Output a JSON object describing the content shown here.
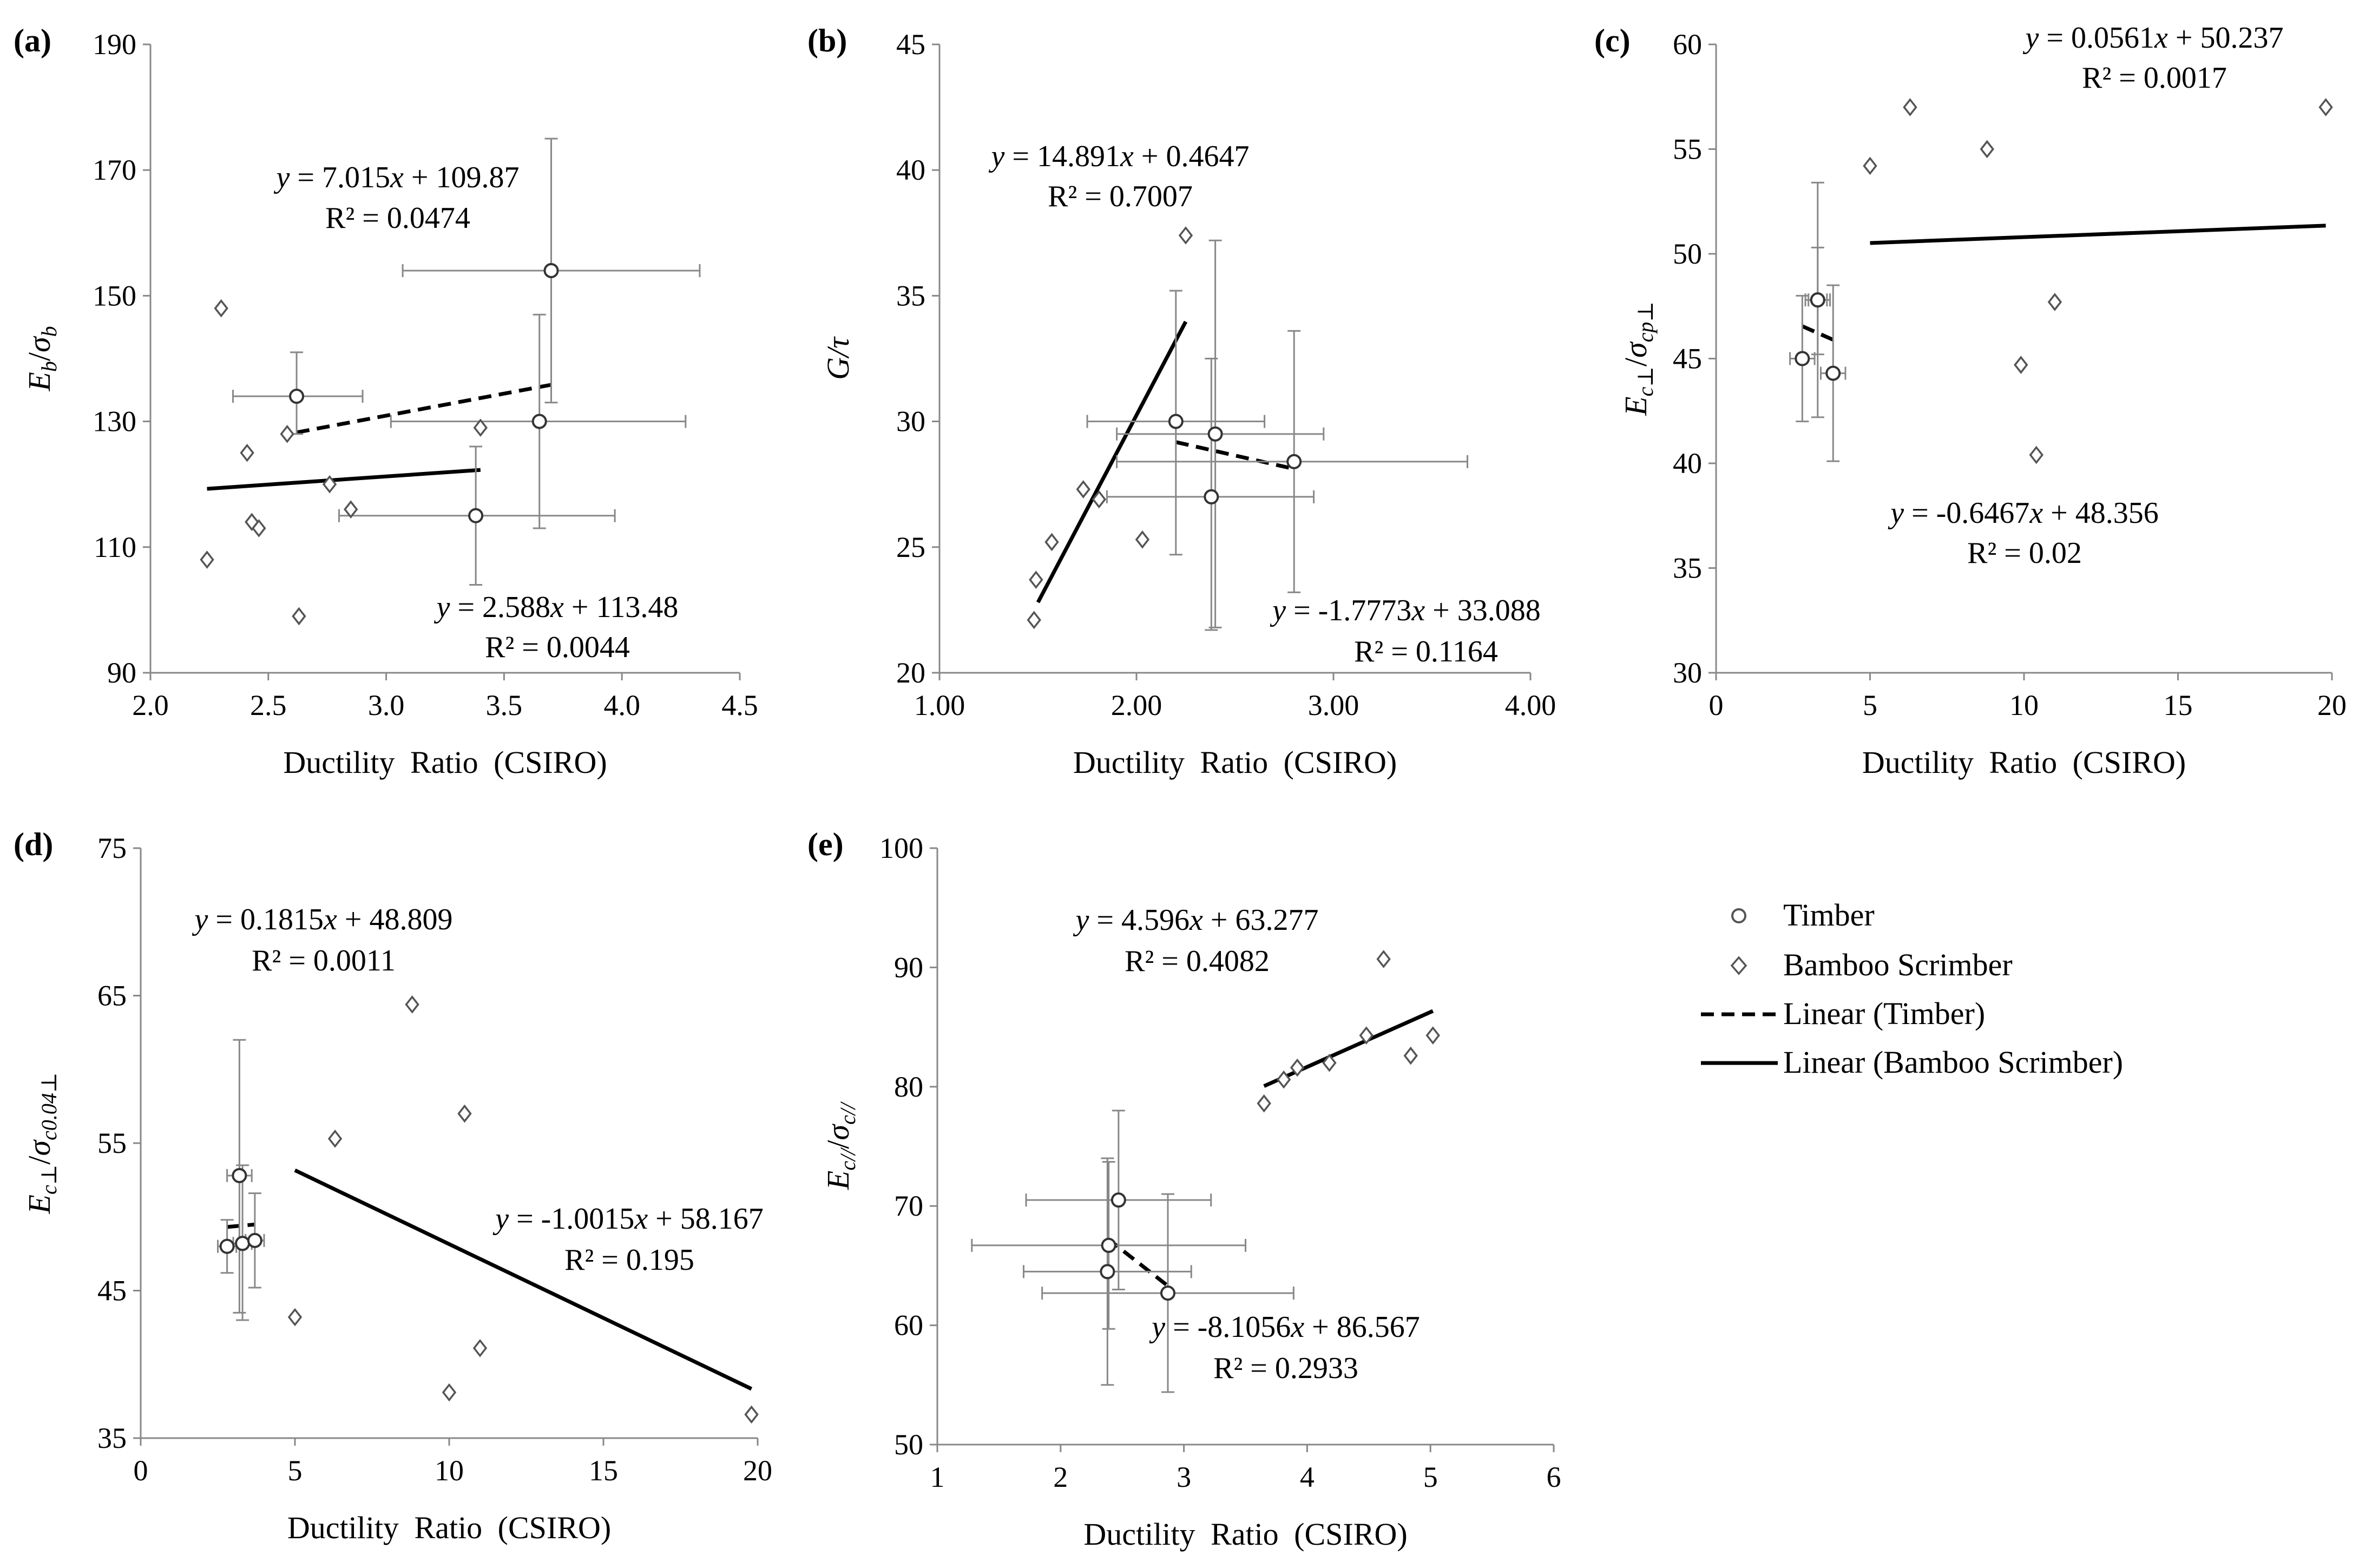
{
  "legend": [
    {
      "label": "Timber",
      "kind": "circle"
    },
    {
      "label": "Bamboo Scrimber",
      "kind": "diamond"
    },
    {
      "label": "Linear (Timber)",
      "kind": "dash"
    },
    {
      "label": "Linear (Bamboo Scrimber)",
      "kind": "solid"
    }
  ],
  "chart_data": [
    {
      "panel": "(a)",
      "type": "scatter",
      "xlabel": "Ductility Ratio (CSIRO)",
      "ylabel_main": "E",
      "ylabel_sub": "b",
      "ylabel_main2": "σ",
      "ylabel_sub2": "b",
      "xlim": [
        2.0,
        4.5
      ],
      "ylim": [
        90,
        190
      ],
      "xticks": [
        2.0,
        2.5,
        3.0,
        3.5,
        4.0,
        4.5
      ],
      "xtick_labels": [
        "2.0",
        "2.5",
        "3.0",
        "3.5",
        "4.0",
        "4.5"
      ],
      "yticks": [
        90,
        110,
        130,
        150,
        170,
        190
      ],
      "ytick_labels": [
        "90",
        "110",
        "130",
        "150",
        "170",
        "190"
      ],
      "timber": [
        {
          "x": 2.62,
          "y": 134,
          "xerr": [
            2.35,
            2.9
          ],
          "yerr": [
            128,
            141
          ]
        },
        {
          "x": 3.65,
          "y": 130,
          "xerr": [
            3.02,
            4.27
          ],
          "yerr": [
            113,
            147
          ]
        },
        {
          "x": 3.7,
          "y": 154,
          "xerr": [
            3.07,
            4.33
          ],
          "yerr": [
            133,
            175
          ]
        },
        {
          "x": 3.38,
          "y": 115,
          "xerr": [
            2.8,
            3.97
          ],
          "yerr": [
            104,
            126
          ]
        }
      ],
      "bamboo": [
        {
          "x": 2.24,
          "y": 108
        },
        {
          "x": 2.3,
          "y": 148
        },
        {
          "x": 2.41,
          "y": 125
        },
        {
          "x": 2.43,
          "y": 114
        },
        {
          "x": 2.46,
          "y": 113
        },
        {
          "x": 2.58,
          "y": 128
        },
        {
          "x": 2.63,
          "y": 99
        },
        {
          "x": 2.76,
          "y": 120
        },
        {
          "x": 2.85,
          "y": 116
        },
        {
          "x": 3.4,
          "y": 129
        }
      ],
      "fit_timber": {
        "slope": 7.015,
        "intercept": 109.87,
        "x_range": [
          2.62,
          3.7
        ]
      },
      "fit_bamboo": {
        "slope": 2.588,
        "intercept": 113.48,
        "x_range": [
          2.24,
          3.4
        ]
      },
      "eq_timber": {
        "text": "y = 7.015x + 109.87",
        "r2": "R² = 0.0474"
      },
      "eq_bamboo": {
        "text": "y = 2.588x + 113.48",
        "r2": "R² = 0.0044"
      }
    },
    {
      "panel": "(b)",
      "type": "scatter",
      "xlabel": "Ductility Ratio (CSIRO)",
      "ylabel_main": "G/τ",
      "xlim": [
        1.0,
        4.0
      ],
      "ylim": [
        20,
        45
      ],
      "xticks": [
        1.0,
        2.0,
        3.0,
        4.0
      ],
      "xtick_labels": [
        "1.00",
        "2.00",
        "3.00",
        "4.00"
      ],
      "yticks": [
        20,
        25,
        30,
        35,
        40,
        45
      ],
      "ytick_labels": [
        "20",
        "25",
        "30",
        "35",
        "40",
        "45"
      ],
      "timber": [
        {
          "x": 2.2,
          "y": 30.0,
          "xerr": [
            1.75,
            2.65
          ],
          "yerr": [
            24.7,
            35.2
          ]
        },
        {
          "x": 2.4,
          "y": 29.5,
          "xerr": [
            1.9,
            2.95
          ],
          "yerr": [
            21.8,
            37.2
          ]
        },
        {
          "x": 2.38,
          "y": 27.0,
          "xerr": [
            1.85,
            2.9
          ],
          "yerr": [
            21.7,
            32.5
          ]
        },
        {
          "x": 2.8,
          "y": 28.4,
          "xerr": [
            1.9,
            3.68
          ],
          "yerr": [
            23.2,
            33.6
          ]
        }
      ],
      "bamboo": [
        {
          "x": 1.48,
          "y": 22.1
        },
        {
          "x": 1.49,
          "y": 23.7
        },
        {
          "x": 1.57,
          "y": 25.2
        },
        {
          "x": 1.73,
          "y": 27.3
        },
        {
          "x": 1.81,
          "y": 26.9
        },
        {
          "x": 2.03,
          "y": 25.3
        },
        {
          "x": 2.25,
          "y": 37.4
        }
      ],
      "fit_timber": {
        "slope": -1.7773,
        "intercept": 33.088,
        "x_range": [
          2.2,
          2.8
        ]
      },
      "fit_bamboo": {
        "slope": 14.891,
        "intercept": 0.4647,
        "x_range": [
          1.5,
          2.25
        ]
      },
      "eq_timber": {
        "text": "y = -1.7773x + 33.088",
        "r2": "R² = 0.1164"
      },
      "eq_bamboo": {
        "text": "y = 14.891x + 0.4647",
        "r2": "R² = 0.7007"
      }
    },
    {
      "panel": "(c)",
      "type": "scatter",
      "xlabel": "Ductility Ratio (CSIRO)",
      "ylabel_main": "E",
      "ylabel_sub": "c⊥",
      "ylabel_main2": "σ",
      "ylabel_sub2": "cp⊥",
      "xlim": [
        0,
        20
      ],
      "ylim": [
        30,
        60
      ],
      "xticks": [
        0,
        5,
        10,
        15,
        20
      ],
      "xtick_labels": [
        "0",
        "5",
        "10",
        "15",
        "20"
      ],
      "yticks": [
        30,
        35,
        40,
        45,
        50,
        55,
        60
      ],
      "ytick_labels": [
        "30",
        "35",
        "40",
        "45",
        "50",
        "55",
        "60"
      ],
      "timber": [
        {
          "x": 2.8,
          "y": 45.0,
          "xerr": [
            2.4,
            3.2
          ],
          "yerr": [
            42.0,
            48.0
          ]
        },
        {
          "x": 3.3,
          "y": 47.8,
          "xerr": [
            2.9,
            3.7
          ],
          "yerr": [
            45.2,
            50.3
          ]
        },
        {
          "x": 3.3,
          "y": 47.8,
          "xerr": [
            3.0,
            3.6
          ],
          "yerr": [
            42.2,
            53.4
          ]
        },
        {
          "x": 3.8,
          "y": 44.3,
          "xerr": [
            3.4,
            4.2
          ],
          "yerr": [
            40.1,
            48.5
          ]
        }
      ],
      "bamboo": [
        {
          "x": 5.0,
          "y": 54.2
        },
        {
          "x": 6.3,
          "y": 57.0
        },
        {
          "x": 8.8,
          "y": 55.0
        },
        {
          "x": 9.9,
          "y": 44.7
        },
        {
          "x": 10.4,
          "y": 40.4
        },
        {
          "x": 11.0,
          "y": 47.7
        },
        {
          "x": 19.8,
          "y": 57.0
        }
      ],
      "fit_timber": {
        "slope": -0.6467,
        "intercept": 48.356,
        "x_range": [
          2.8,
          3.8
        ]
      },
      "fit_bamboo": {
        "slope": 0.0561,
        "intercept": 50.237,
        "x_range": [
          5.0,
          19.8
        ]
      },
      "eq_timber": {
        "text": "y = -0.6467x + 48.356",
        "r2": "R² = 0.02"
      },
      "eq_bamboo": {
        "text": "y = 0.0561x + 50.237",
        "r2": "R² = 0.0017"
      }
    },
    {
      "panel": "(d)",
      "type": "scatter",
      "xlabel": "Ductility Ratio (CSIRO)",
      "ylabel_main": "E",
      "ylabel_sub": "c⊥",
      "ylabel_main2": "σ",
      "ylabel_sub2": "c0.04⊥",
      "xlim": [
        0,
        20
      ],
      "ylim": [
        35,
        75
      ],
      "xticks": [
        0,
        5,
        10,
        15,
        20
      ],
      "xtick_labels": [
        "0",
        "5",
        "10",
        "15",
        "20"
      ],
      "yticks": [
        35,
        45,
        55,
        65,
        75
      ],
      "ytick_labels": [
        "35",
        "45",
        "55",
        "65",
        "75"
      ],
      "timber": [
        {
          "x": 2.8,
          "y": 48.0,
          "xerr": [
            2.5,
            3.1
          ],
          "yerr": [
            46.2,
            49.8
          ]
        },
        {
          "x": 3.2,
          "y": 52.8,
          "xerr": [
            2.8,
            3.6
          ],
          "yerr": [
            43.5,
            62.0
          ]
        },
        {
          "x": 3.3,
          "y": 48.2,
          "xerr": [
            3.0,
            3.6
          ],
          "yerr": [
            43.0,
            53.5
          ]
        },
        {
          "x": 3.7,
          "y": 48.4,
          "xerr": [
            3.4,
            4.0
          ],
          "yerr": [
            45.2,
            51.6
          ]
        }
      ],
      "bamboo": [
        {
          "x": 5.0,
          "y": 43.2
        },
        {
          "x": 6.3,
          "y": 55.3
        },
        {
          "x": 8.8,
          "y": 64.4
        },
        {
          "x": 10.0,
          "y": 38.1
        },
        {
          "x": 10.5,
          "y": 57.0
        },
        {
          "x": 11.0,
          "y": 41.1
        },
        {
          "x": 19.8,
          "y": 36.6
        }
      ],
      "fit_timber": {
        "slope": 0.1815,
        "intercept": 48.809,
        "x_range": [
          2.8,
          3.7
        ]
      },
      "fit_bamboo": {
        "slope": -1.0015,
        "intercept": 58.167,
        "x_range": [
          5.0,
          19.8
        ]
      },
      "eq_timber": {
        "text": "y = 0.1815x + 48.809",
        "r2": "R² = 0.0011"
      },
      "eq_bamboo": {
        "text": "y = -1.0015x + 58.167",
        "r2": "R² = 0.195"
      }
    },
    {
      "panel": "(e)",
      "type": "scatter",
      "xlabel": "Ductility Ratio (CSIRO)",
      "ylabel_main": "E",
      "ylabel_sub": "c//",
      "ylabel_main2": "σ",
      "ylabel_sub2": "c//",
      "xlim": [
        1,
        6
      ],
      "ylim": [
        50,
        100
      ],
      "xticks": [
        1,
        2,
        3,
        4,
        5,
        6
      ],
      "xtick_labels": [
        "1",
        "2",
        "3",
        "4",
        "5",
        "6"
      ],
      "yticks": [
        50,
        60,
        70,
        80,
        90,
        100
      ],
      "ytick_labels": [
        "50",
        "60",
        "70",
        "80",
        "90",
        "100"
      ],
      "timber": [
        {
          "x": 2.47,
          "y": 70.5,
          "xerr": [
            1.72,
            3.22
          ],
          "yerr": [
            63.0,
            78.0
          ]
        },
        {
          "x": 2.39,
          "y": 66.7,
          "xerr": [
            1.28,
            3.5
          ],
          "yerr": [
            59.7,
            73.7
          ]
        },
        {
          "x": 2.38,
          "y": 64.5,
          "xerr": [
            1.7,
            3.06
          ],
          "yerr": [
            55.0,
            74.0
          ]
        },
        {
          "x": 2.87,
          "y": 62.7,
          "xerr": [
            1.85,
            3.89
          ],
          "yerr": [
            54.4,
            71.0
          ]
        }
      ],
      "bamboo": [
        {
          "x": 3.65,
          "y": 78.6
        },
        {
          "x": 3.81,
          "y": 80.6
        },
        {
          "x": 3.92,
          "y": 81.6
        },
        {
          "x": 4.18,
          "y": 82.0
        },
        {
          "x": 4.48,
          "y": 84.3
        },
        {
          "x": 4.62,
          "y": 90.7
        },
        {
          "x": 4.84,
          "y": 82.6
        },
        {
          "x": 5.02,
          "y": 84.3
        }
      ],
      "fit_timber": {
        "slope": -8.1056,
        "intercept": 86.567,
        "x_range": [
          2.38,
          2.87
        ]
      },
      "fit_bamboo": {
        "slope": 4.596,
        "intercept": 63.277,
        "x_range": [
          3.65,
          5.02
        ]
      },
      "eq_timber": {
        "text": "y = -8.1056x + 86.567",
        "r2": "R² = 0.2933"
      },
      "eq_bamboo": {
        "text": "y = 4.596x + 63.277",
        "r2": "R² = 0.4082"
      }
    }
  ]
}
